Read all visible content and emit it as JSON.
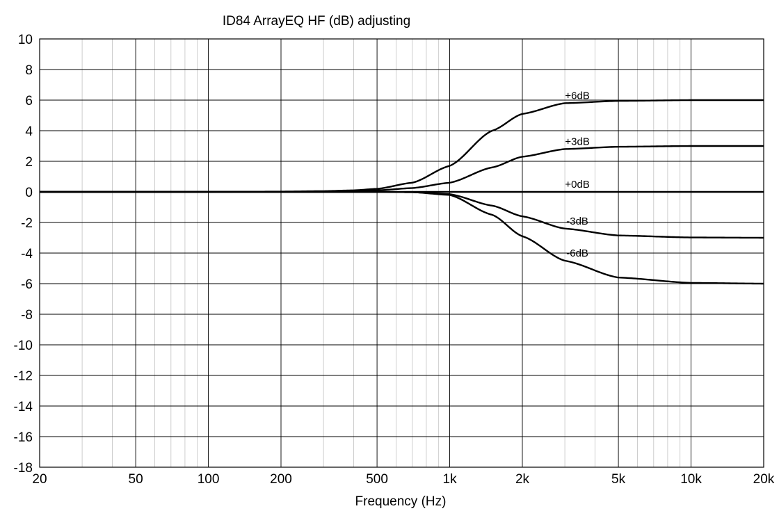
{
  "chart_data": {
    "type": "line",
    "title": "ID84 ArrayEQ HF (dB) adjusting",
    "xlabel": "Frequency (Hz)",
    "ylabel": "",
    "x_scale": "log",
    "xlim": [
      20,
      20000
    ],
    "ylim": [
      -18,
      10
    ],
    "grid": true,
    "x_ticks": [
      {
        "value": 20,
        "label": "20"
      },
      {
        "value": 50,
        "label": "50"
      },
      {
        "value": 100,
        "label": "100"
      },
      {
        "value": 200,
        "label": "200"
      },
      {
        "value": 500,
        "label": "500"
      },
      {
        "value": 1000,
        "label": "1k"
      },
      {
        "value": 2000,
        "label": "2k"
      },
      {
        "value": 5000,
        "label": "5k"
      },
      {
        "value": 10000,
        "label": "10k"
      },
      {
        "value": 20000,
        "label": "20k"
      }
    ],
    "y_ticks": [
      10,
      8,
      6,
      4,
      2,
      0,
      -2,
      -4,
      -6,
      -8,
      -10,
      -12,
      -14,
      -16,
      -18
    ],
    "x": [
      20,
      100,
      200,
      300,
      400,
      500,
      700,
      1000,
      1500,
      2000,
      3000,
      5000,
      10000,
      20000
    ],
    "series": [
      {
        "name": "+6dB",
        "values": [
          0,
          0,
          0.02,
          0.05,
          0.1,
          0.2,
          0.6,
          1.7,
          4.0,
          5.1,
          5.8,
          5.95,
          6.0,
          6.0
        ]
      },
      {
        "name": "+3dB",
        "values": [
          0,
          0,
          0.01,
          0.02,
          0.05,
          0.1,
          0.25,
          0.6,
          1.6,
          2.3,
          2.8,
          2.95,
          3.0,
          3.0
        ]
      },
      {
        "name": "+0dB",
        "values": [
          0,
          0,
          0,
          0,
          0,
          0,
          0,
          0,
          0,
          0,
          0,
          0,
          0,
          0
        ]
      },
      {
        "name": "-3dB",
        "values": [
          0,
          0,
          0,
          0,
          0,
          0,
          -0.02,
          -0.15,
          -0.9,
          -1.6,
          -2.4,
          -2.85,
          -2.98,
          -3.0
        ]
      },
      {
        "name": "-6dB",
        "values": [
          0,
          0,
          0,
          0,
          0,
          0,
          -0.02,
          -0.2,
          -1.5,
          -2.9,
          -4.5,
          -5.6,
          -5.95,
          -6.0
        ]
      }
    ],
    "series_label_at": 3000,
    "series_labels": [
      "+6dB",
      "+3dB",
      "+0dB",
      "-3dB",
      "-6dB"
    ],
    "line_color": "#000000",
    "major_grid_color": "#000000",
    "minor_grid_color": "#c8c8c8"
  }
}
